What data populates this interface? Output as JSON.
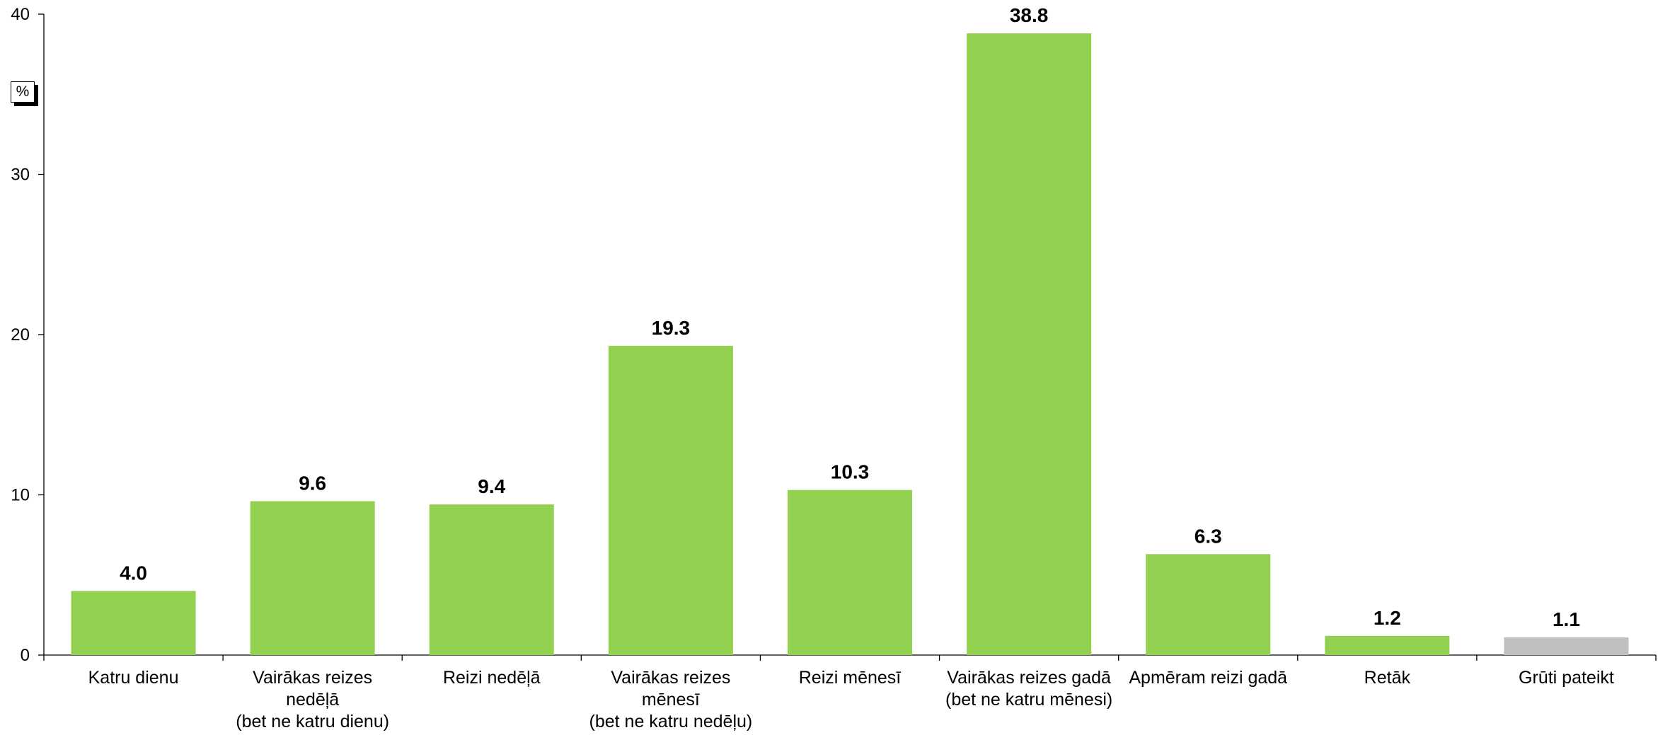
{
  "unit_label": "%",
  "colors": {
    "bar": "#92d050",
    "bar_other": "#bfbfbf",
    "axis": "#000000",
    "text": "#000000"
  },
  "chart_data": {
    "type": "bar",
    "title": "",
    "xlabel": "",
    "ylabel": "%",
    "ylim": [
      0,
      40
    ],
    "yticks": [
      0,
      10,
      20,
      30,
      40
    ],
    "grid": false,
    "legend": "none",
    "categories": [
      [
        "Katru dienu"
      ],
      [
        "Vairākas reizes",
        "nedēļā",
        "(bet ne katru dienu)"
      ],
      [
        "Reizi nedēļā"
      ],
      [
        "Vairākas reizes",
        "mēnesī",
        "(bet ne katru nedēļu)"
      ],
      [
        "Reizi mēnesī"
      ],
      [
        "Vairākas reizes gadā",
        "(bet ne katru mēnesi)"
      ],
      [
        "Apmēram reizi gadā"
      ],
      [
        "Retāk"
      ],
      [
        "Grūti pateikt"
      ]
    ],
    "values": [
      4.0,
      9.6,
      9.4,
      19.3,
      10.3,
      38.8,
      6.3,
      1.2,
      1.1
    ],
    "data_labels": [
      "4.0",
      "9.6",
      "9.4",
      "19.3",
      "10.3",
      "38.8",
      "6.3",
      "1.2",
      "1.1"
    ],
    "bar_colors": [
      "#92d050",
      "#92d050",
      "#92d050",
      "#92d050",
      "#92d050",
      "#92d050",
      "#92d050",
      "#92d050",
      "#bfbfbf"
    ]
  }
}
